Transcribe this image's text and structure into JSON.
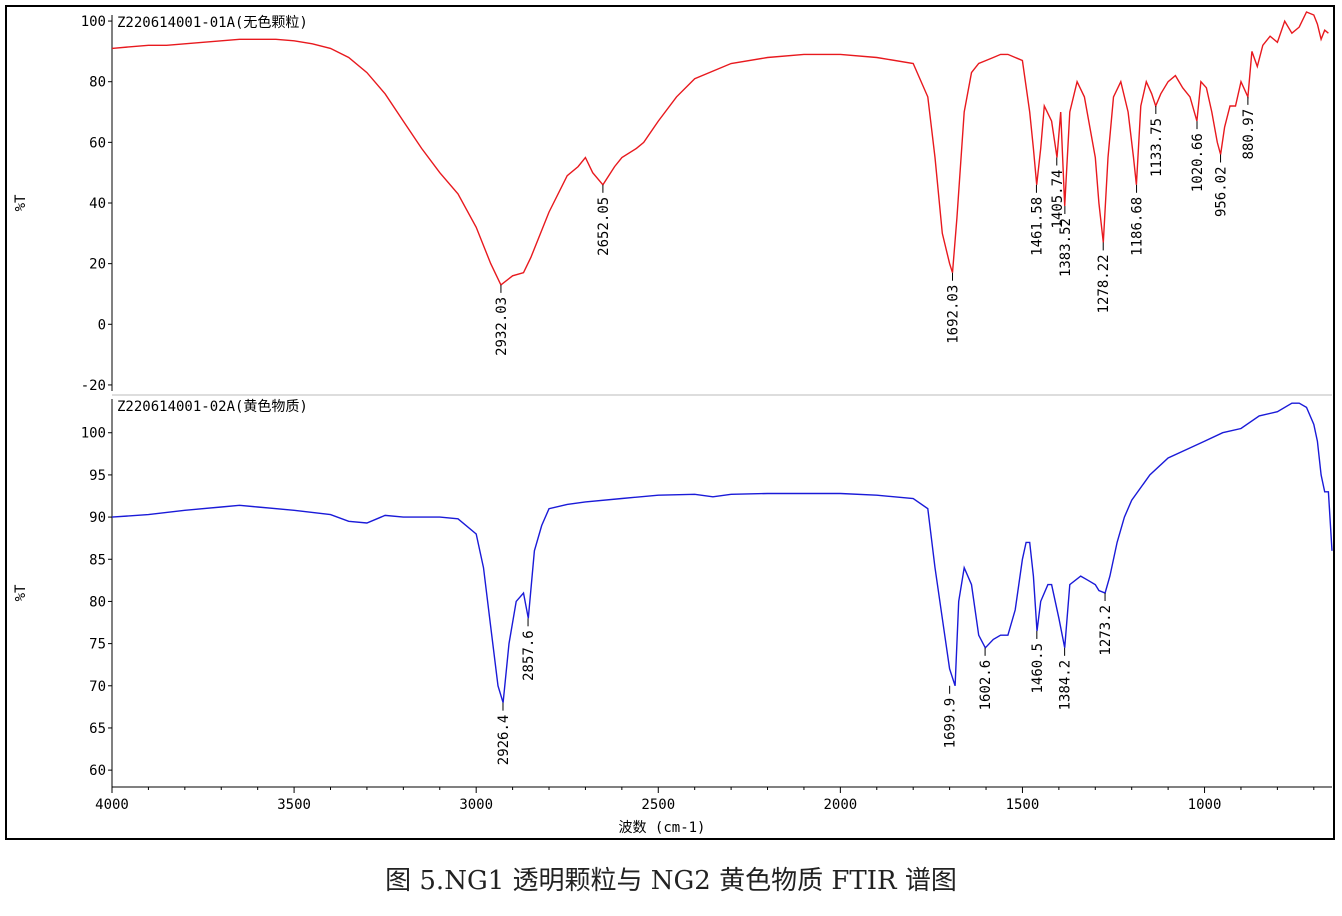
{
  "caption": "图 5.NG1 透明颗粒与 NG2 黄色物质 FTIR 谱图",
  "chart_data": [
    {
      "type": "line",
      "title": "Z220614001-01A(无色颗粒)",
      "ylabel": "%T",
      "xlabel": "波数 (cm-1)",
      "xlim": [
        4000,
        650
      ],
      "ylim": [
        -22,
        102
      ],
      "yticks": [
        100,
        80,
        60,
        40,
        20,
        0,
        -20
      ],
      "color": "#e8191e",
      "series": [
        {
          "x": [
            4000,
            3950,
            3900,
            3850,
            3800,
            3750,
            3700,
            3650,
            3600,
            3550,
            3500,
            3450,
            3400,
            3350,
            3300,
            3250,
            3200,
            3150,
            3100,
            3050,
            3000,
            2960,
            2932,
            2900,
            2870,
            2850,
            2800,
            2750,
            2720,
            2700,
            2680,
            2652,
            2620,
            2600,
            2560,
            2540,
            2500,
            2450,
            2400,
            2300,
            2200,
            2100,
            2000,
            1900,
            1800,
            1760,
            1740,
            1720,
            1700,
            1692,
            1680,
            1660,
            1640,
            1620,
            1600,
            1580,
            1560,
            1540,
            1500,
            1480,
            1470,
            1461,
            1450,
            1440,
            1420,
            1405,
            1395,
            1384,
            1370,
            1350,
            1330,
            1300,
            1290,
            1278,
            1265,
            1250,
            1230,
            1210,
            1195,
            1187,
            1175,
            1160,
            1145,
            1134,
            1120,
            1100,
            1080,
            1060,
            1040,
            1021,
            1010,
            995,
            980,
            965,
            956,
            945,
            930,
            915,
            900,
            881,
            870,
            855,
            840,
            820,
            800,
            780,
            760,
            740,
            720,
            700,
            690,
            680,
            670,
            660
          ],
          "y": [
            91,
            91.5,
            92,
            92,
            92.5,
            93,
            93.5,
            94,
            94,
            94,
            93.5,
            92.5,
            91,
            88,
            83,
            76,
            67,
            58,
            50,
            43,
            32,
            20,
            13,
            16,
            17,
            22,
            37,
            49,
            52,
            55,
            50,
            46,
            52,
            55,
            58,
            60,
            67,
            75,
            81,
            86,
            88,
            89,
            89,
            88,
            86,
            75,
            55,
            30,
            20,
            17,
            35,
            70,
            83,
            86,
            87,
            88,
            89,
            89,
            87,
            70,
            58,
            46,
            58,
            72,
            67,
            55,
            70,
            39,
            70,
            80,
            75,
            55,
            40,
            27,
            55,
            75,
            80,
            70,
            55,
            46,
            72,
            80,
            76,
            72,
            76,
            80,
            82,
            78,
            75,
            67,
            80,
            78,
            70,
            60,
            56,
            65,
            72,
            72,
            80,
            75,
            90,
            85,
            92,
            95,
            93,
            100,
            96,
            98,
            103,
            102,
            99,
            94,
            97,
            96
          ]
        }
      ],
      "peak_labels": [
        {
          "x": 2932.03,
          "text": "2932.03",
          "tip": 13
        },
        {
          "x": 2652.05,
          "text": "2652.05",
          "tip": 46
        },
        {
          "x": 1692.03,
          "text": "1692.03",
          "tip": 17
        },
        {
          "x": 1461.58,
          "text": "1461.58",
          "tip": 46
        },
        {
          "x": 1405.74,
          "text": "1405.74",
          "tip": 55
        },
        {
          "x": 1383.52,
          "text": "1383.52",
          "tip": 39
        },
        {
          "x": 1278.22,
          "text": "1278.22",
          "tip": 27
        },
        {
          "x": 1186.68,
          "text": "1186.68",
          "tip": 46
        },
        {
          "x": 1133.75,
          "text": "1133.75",
          "tip": 72
        },
        {
          "x": 1020.66,
          "text": "1020.66",
          "tip": 67
        },
        {
          "x": 956.02,
          "text": "956.02",
          "tip": 56
        },
        {
          "x": 880.97,
          "text": "880.97",
          "tip": 75
        }
      ]
    },
    {
      "type": "line",
      "title": "Z220614001-02A(黄色物质)",
      "ylabel": "%T",
      "xlabel": "波数 (cm-1)",
      "xlim": [
        4000,
        650
      ],
      "ylim": [
        58,
        104
      ],
      "yticks": [
        100,
        95,
        90,
        85,
        80,
        75,
        70,
        65,
        60
      ],
      "xticks": [
        4000,
        3500,
        3000,
        2500,
        2000,
        1500,
        1000
      ],
      "color": "#1a1ad8",
      "series": [
        {
          "x": [
            4000,
            3900,
            3800,
            3700,
            3650,
            3600,
            3500,
            3400,
            3350,
            3300,
            3250,
            3200,
            3100,
            3050,
            3000,
            2980,
            2960,
            2940,
            2926,
            2910,
            2890,
            2870,
            2857,
            2840,
            2820,
            2800,
            2750,
            2700,
            2600,
            2500,
            2400,
            2350,
            2300,
            2200,
            2100,
            2000,
            1900,
            1800,
            1760,
            1740,
            1720,
            1700,
            1685,
            1675,
            1660,
            1640,
            1620,
            1602,
            1580,
            1560,
            1540,
            1520,
            1500,
            1490,
            1480,
            1470,
            1460,
            1450,
            1430,
            1420,
            1400,
            1384,
            1370,
            1340,
            1320,
            1300,
            1290,
            1273,
            1260,
            1240,
            1220,
            1200,
            1150,
            1100,
            1050,
            1000,
            950,
            900,
            850,
            800,
            760,
            740,
            720,
            700,
            690,
            680,
            670,
            660,
            650
          ],
          "y": [
            90,
            90.3,
            90.8,
            91.2,
            91.4,
            91.2,
            90.8,
            90.3,
            89.5,
            89.3,
            90.2,
            90,
            90,
            89.8,
            88,
            84,
            77,
            70,
            68,
            75,
            80,
            81,
            78,
            86,
            89,
            91,
            91.5,
            91.8,
            92.2,
            92.6,
            92.7,
            92.4,
            92.7,
            92.8,
            92.8,
            92.8,
            92.6,
            92.2,
            91,
            84,
            78,
            72,
            70,
            80,
            84,
            82,
            76,
            74.5,
            75.5,
            76,
            76,
            79,
            85,
            87,
            87,
            83,
            76.5,
            80,
            82,
            82,
            78,
            74.5,
            82,
            83,
            82.5,
            82,
            81.3,
            81,
            83,
            87,
            90,
            92,
            95,
            97,
            98,
            99,
            100,
            100.5,
            102,
            102.5,
            103.5,
            103.5,
            103,
            101,
            99,
            95,
            93,
            93,
            86
          ]
        }
      ],
      "peak_labels": [
        {
          "x": 2926.4,
          "text": "2926.4",
          "tip": 68
        },
        {
          "x": 2857.6,
          "text": "2857.6",
          "tip": 78
        },
        {
          "x": 1699.9,
          "text": "1699.9",
          "tip": 70
        },
        {
          "x": 1602.6,
          "text": "1602.6",
          "tip": 74.5
        },
        {
          "x": 1460.5,
          "text": "1460.5",
          "tip": 76.5
        },
        {
          "x": 1384.2,
          "text": "1384.2",
          "tip": 74.5
        },
        {
          "x": 1273.2,
          "text": "1273.2",
          "tip": 81
        }
      ]
    }
  ]
}
